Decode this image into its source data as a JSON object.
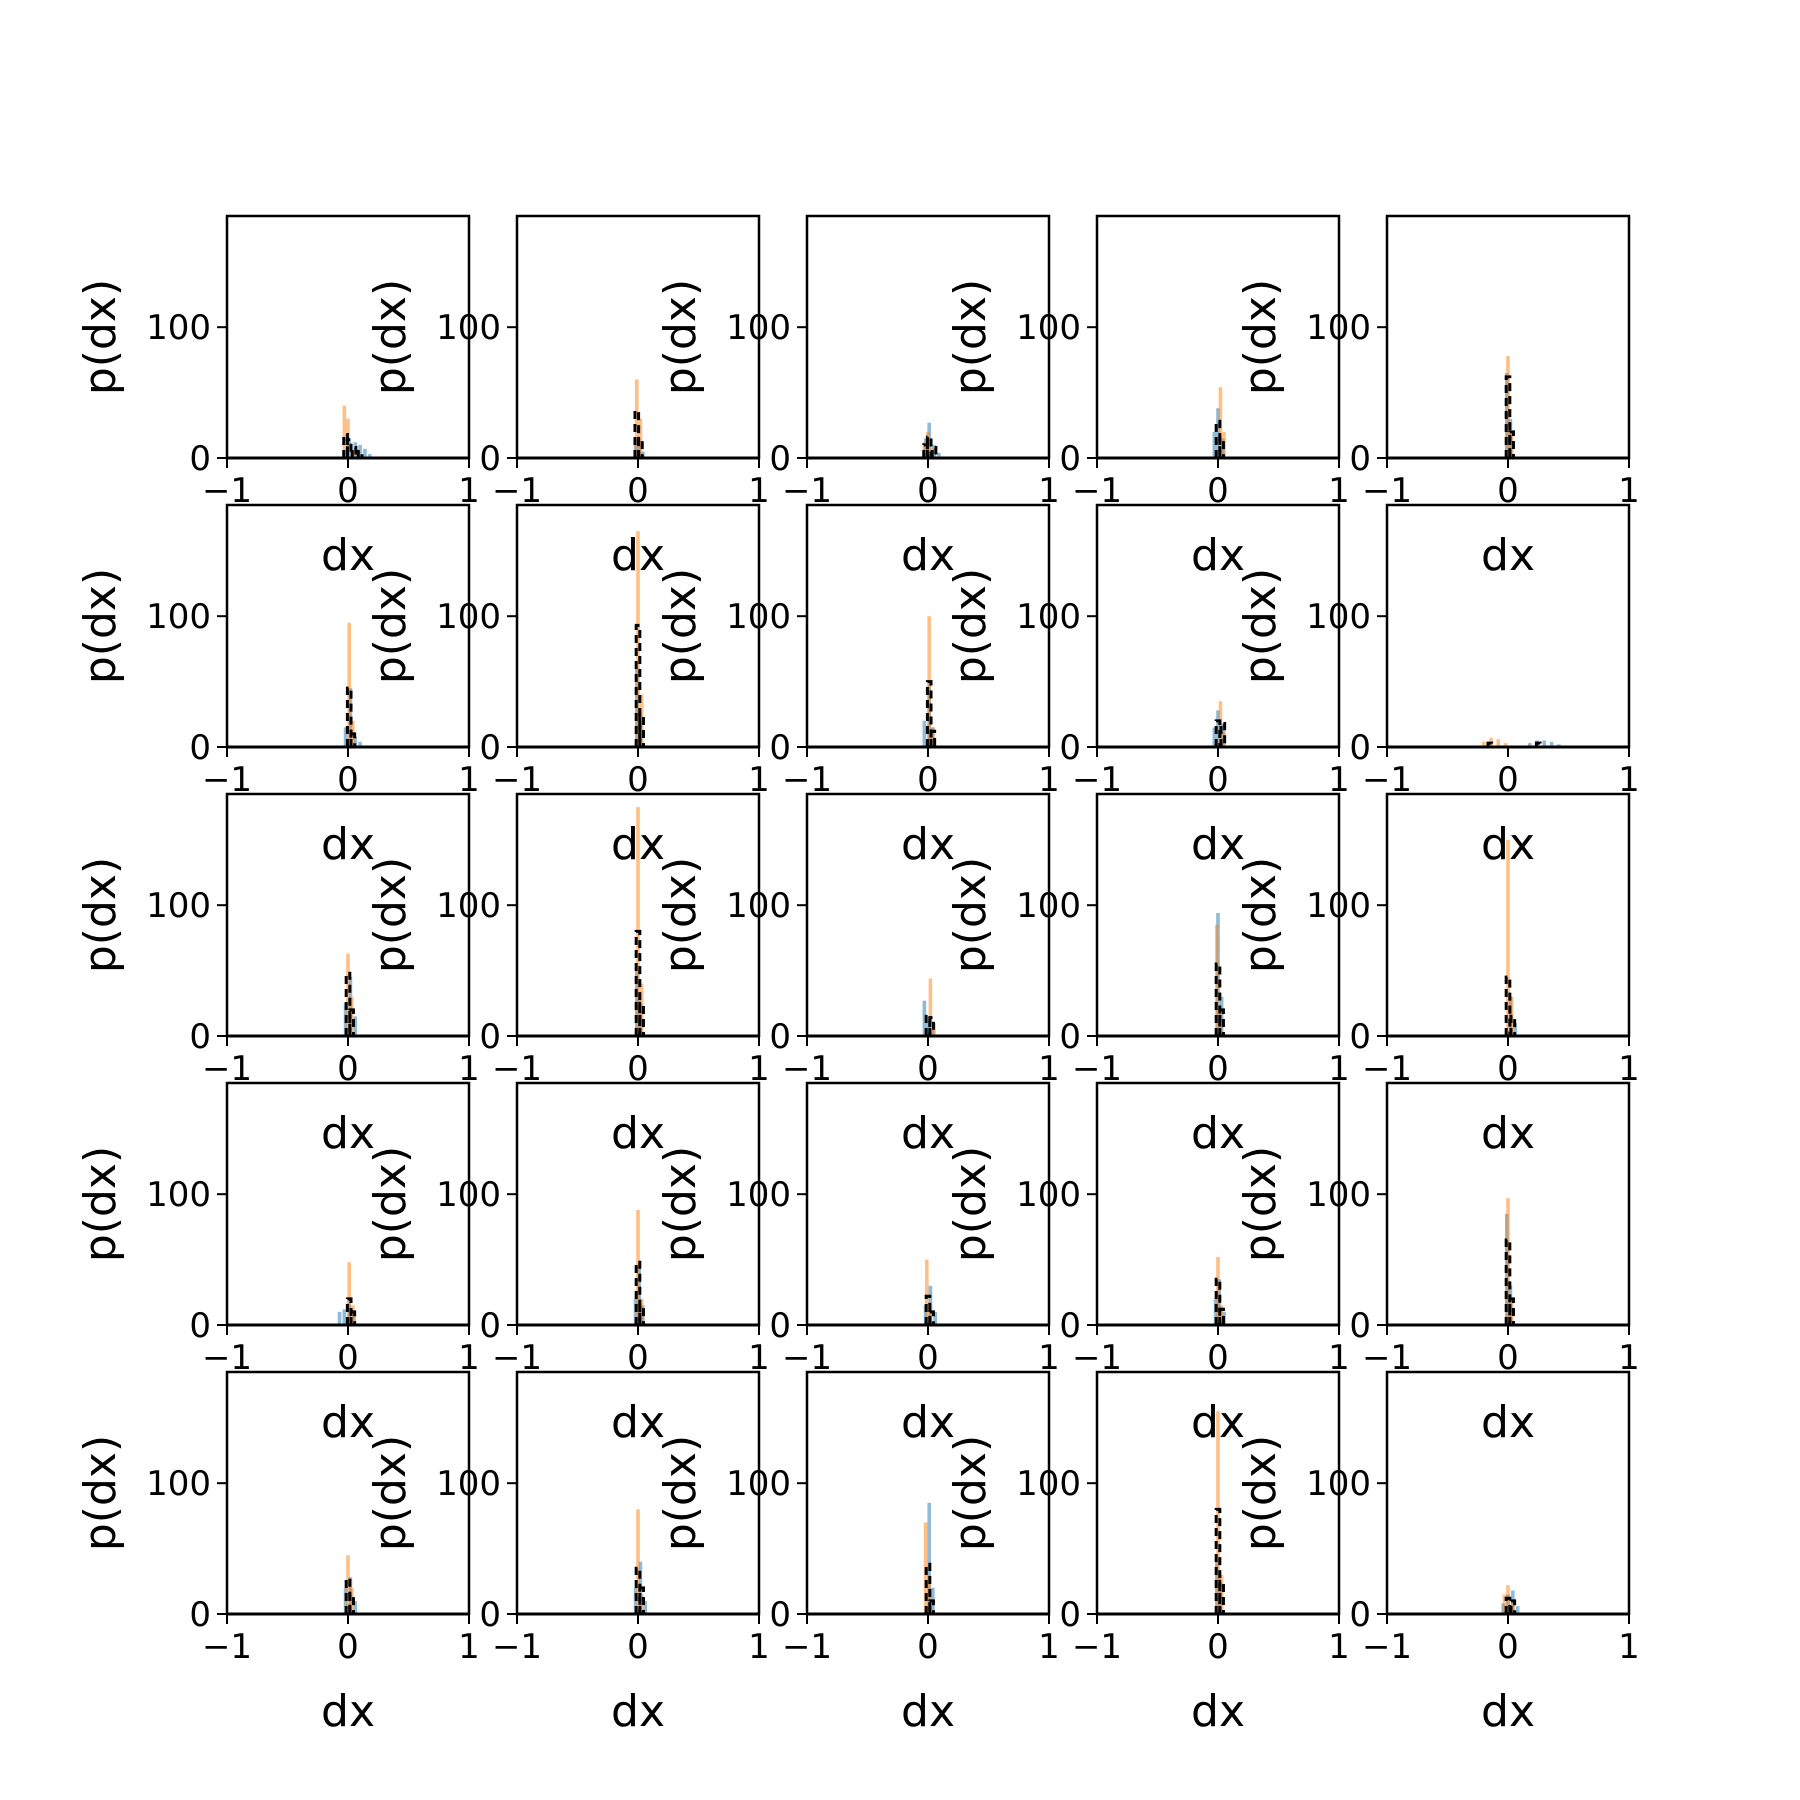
{
  "figure": {
    "colors": {
      "blue": "#1f77b4",
      "orange": "#ff7f0e",
      "black": "#000000",
      "frame": "#000000"
    }
  },
  "chart_data": {
    "type": "histogram-grid",
    "rows": 5,
    "cols": 5,
    "xlabel": "dx",
    "ylabel": "p(dx)",
    "xlim": [
      -1,
      1
    ],
    "ylim": [
      0,
      185
    ],
    "xticks": [
      -1,
      0,
      1
    ],
    "xtick_labels": [
      "−1",
      "0",
      "1"
    ],
    "yticks": [
      0,
      100
    ],
    "ytick_labels": [
      "0",
      "100"
    ],
    "grid": false,
    "legend": "none",
    "series_styles": [
      {
        "key": "blue",
        "render": "filled histogram",
        "alpha": 0.5
      },
      {
        "key": "orange",
        "render": "filled histogram",
        "alpha": 0.5
      },
      {
        "key": "black",
        "render": "dashed step outline"
      }
    ],
    "panels": [
      {
        "row": 0,
        "col": 0,
        "blue": [
          [
            0.01,
            15
          ],
          [
            0.06,
            12
          ],
          [
            0.1,
            10
          ],
          [
            0.14,
            7
          ],
          [
            0.18,
            3
          ]
        ],
        "orange": [
          [
            -0.03,
            40
          ],
          [
            0.0,
            30
          ],
          [
            0.04,
            5
          ]
        ],
        "black": [
          [
            -0.02,
            18
          ],
          [
            0.01,
            14
          ],
          [
            0.05,
            8
          ],
          [
            0.1,
            5
          ]
        ]
      },
      {
        "row": 0,
        "col": 1,
        "blue": [
          [
            -0.02,
            15
          ],
          [
            0.01,
            10
          ],
          [
            0.04,
            5
          ]
        ],
        "orange": [
          [
            -0.01,
            60
          ],
          [
            0.02,
            30
          ]
        ],
        "black": [
          [
            -0.01,
            36
          ],
          [
            0.02,
            15
          ]
        ]
      },
      {
        "row": 0,
        "col": 2,
        "blue": [
          [
            -0.02,
            15
          ],
          [
            0.01,
            27
          ],
          [
            0.05,
            10
          ],
          [
            0.09,
            4
          ]
        ],
        "orange": [
          [
            -0.03,
            12
          ],
          [
            0.0,
            20
          ],
          [
            0.03,
            8
          ]
        ],
        "black": [
          [
            -0.02,
            10
          ],
          [
            0.01,
            16
          ],
          [
            0.05,
            8
          ]
        ]
      },
      {
        "row": 0,
        "col": 3,
        "blue": [
          [
            -0.03,
            20
          ],
          [
            0.0,
            38
          ],
          [
            0.04,
            15
          ]
        ],
        "orange": [
          [
            0.02,
            54
          ],
          [
            0.05,
            20
          ]
        ],
        "black": [
          [
            0.0,
            28
          ],
          [
            0.03,
            15
          ]
        ]
      },
      {
        "row": 0,
        "col": 4,
        "blue": [
          [
            -0.01,
            65
          ],
          [
            0.02,
            30
          ]
        ],
        "orange": [
          [
            0.0,
            78
          ],
          [
            0.03,
            20
          ]
        ],
        "black": [
          [
            0.0,
            62
          ],
          [
            0.03,
            20
          ]
        ]
      },
      {
        "row": 1,
        "col": 0,
        "blue": [
          [
            -0.02,
            15
          ],
          [
            0.02,
            45
          ],
          [
            0.06,
            8
          ],
          [
            0.1,
            4
          ]
        ],
        "orange": [
          [
            0.01,
            95
          ],
          [
            0.04,
            20
          ]
        ],
        "black": [
          [
            0.01,
            45
          ],
          [
            0.04,
            10
          ]
        ]
      },
      {
        "row": 1,
        "col": 1,
        "blue": [
          [
            -0.01,
            60
          ],
          [
            0.02,
            20
          ]
        ],
        "orange": [
          [
            0.0,
            165
          ],
          [
            0.03,
            40
          ]
        ],
        "black": [
          [
            0.0,
            93
          ],
          [
            0.03,
            25
          ]
        ]
      },
      {
        "row": 1,
        "col": 2,
        "blue": [
          [
            -0.03,
            20
          ],
          [
            0.01,
            48
          ],
          [
            0.04,
            15
          ]
        ],
        "orange": [
          [
            0.01,
            100
          ],
          [
            0.04,
            15
          ]
        ],
        "black": [
          [
            0.01,
            50
          ],
          [
            0.04,
            12
          ]
        ]
      },
      {
        "row": 1,
        "col": 3,
        "blue": [
          [
            -0.03,
            15
          ],
          [
            0.0,
            28
          ],
          [
            0.04,
            18
          ]
        ],
        "orange": [
          [
            0.02,
            35
          ],
          [
            0.05,
            12
          ]
        ],
        "black": [
          [
            0.0,
            20
          ],
          [
            0.04,
            18
          ]
        ]
      },
      {
        "row": 1,
        "col": 4,
        "blue": [
          [
            0.18,
            3
          ],
          [
            0.24,
            5
          ],
          [
            0.3,
            5
          ],
          [
            0.36,
            4
          ],
          [
            0.42,
            2
          ]
        ],
        "orange": [
          [
            -0.2,
            4
          ],
          [
            -0.14,
            7
          ],
          [
            -0.08,
            6
          ],
          [
            -0.02,
            3
          ]
        ],
        "black": [
          [
            -0.15,
            3
          ],
          [
            0.25,
            3
          ]
        ]
      },
      {
        "row": 2,
        "col": 0,
        "blue": [
          [
            -0.02,
            25
          ],
          [
            0.02,
            45
          ],
          [
            0.06,
            15
          ]
        ],
        "orange": [
          [
            0.0,
            63
          ],
          [
            0.03,
            30
          ]
        ],
        "black": [
          [
            0.0,
            48
          ],
          [
            0.03,
            20
          ]
        ]
      },
      {
        "row": 2,
        "col": 1,
        "blue": [
          [
            -0.01,
            50
          ],
          [
            0.02,
            20
          ]
        ],
        "orange": [
          [
            0.0,
            175
          ],
          [
            0.03,
            40
          ]
        ],
        "black": [
          [
            0.0,
            80
          ],
          [
            0.03,
            25
          ]
        ]
      },
      {
        "row": 2,
        "col": 2,
        "blue": [
          [
            -0.03,
            27
          ],
          [
            0.0,
            10
          ],
          [
            0.04,
            5
          ]
        ],
        "orange": [
          [
            0.02,
            44
          ],
          [
            0.05,
            10
          ]
        ],
        "black": [
          [
            0.0,
            15
          ],
          [
            0.03,
            14
          ]
        ]
      },
      {
        "row": 2,
        "col": 3,
        "blue": [
          [
            0.0,
            94
          ],
          [
            0.03,
            30
          ]
        ],
        "orange": [
          [
            -0.01,
            85
          ],
          [
            0.02,
            20
          ]
        ],
        "black": [
          [
            0.0,
            55
          ],
          [
            0.03,
            20
          ]
        ]
      },
      {
        "row": 2,
        "col": 4,
        "blue": [
          [
            0.02,
            30
          ],
          [
            0.06,
            10
          ]
        ],
        "orange": [
          [
            0.0,
            150
          ],
          [
            0.03,
            30
          ]
        ],
        "black": [
          [
            0.0,
            45
          ],
          [
            0.04,
            15
          ]
        ]
      },
      {
        "row": 3,
        "col": 0,
        "blue": [
          [
            -0.07,
            10
          ],
          [
            -0.03,
            12
          ],
          [
            0.01,
            18
          ],
          [
            0.05,
            8
          ]
        ],
        "orange": [
          [
            0.01,
            48
          ],
          [
            0.04,
            15
          ]
        ],
        "black": [
          [
            0.01,
            20
          ],
          [
            0.04,
            10
          ]
        ]
      },
      {
        "row": 3,
        "col": 1,
        "blue": [
          [
            -0.02,
            20
          ],
          [
            0.01,
            45
          ],
          [
            0.04,
            15
          ]
        ],
        "orange": [
          [
            0.0,
            88
          ],
          [
            0.03,
            20
          ]
        ],
        "black": [
          [
            0.0,
            48
          ],
          [
            0.03,
            15
          ]
        ]
      },
      {
        "row": 3,
        "col": 2,
        "blue": [
          [
            -0.02,
            15
          ],
          [
            0.02,
            30
          ],
          [
            0.06,
            10
          ]
        ],
        "orange": [
          [
            -0.01,
            50
          ],
          [
            0.02,
            15
          ]
        ],
        "black": [
          [
            0.0,
            22
          ],
          [
            0.03,
            10
          ]
        ]
      },
      {
        "row": 3,
        "col": 3,
        "blue": [
          [
            -0.02,
            20
          ],
          [
            0.01,
            35
          ],
          [
            0.05,
            10
          ]
        ],
        "orange": [
          [
            0.0,
            52
          ],
          [
            0.03,
            15
          ]
        ],
        "black": [
          [
            0.0,
            35
          ],
          [
            0.03,
            12
          ]
        ]
      },
      {
        "row": 3,
        "col": 4,
        "blue": [
          [
            -0.01,
            85
          ],
          [
            0.02,
            30
          ]
        ],
        "orange": [
          [
            0.0,
            97
          ],
          [
            0.03,
            20
          ]
        ],
        "black": [
          [
            0.0,
            65
          ],
          [
            0.03,
            20
          ]
        ]
      },
      {
        "row": 4,
        "col": 0,
        "blue": [
          [
            -0.02,
            20
          ],
          [
            0.02,
            28
          ],
          [
            0.06,
            10
          ]
        ],
        "orange": [
          [
            0.0,
            45
          ],
          [
            0.03,
            20
          ]
        ],
        "black": [
          [
            0.0,
            27
          ],
          [
            0.03,
            15
          ]
        ]
      },
      {
        "row": 4,
        "col": 1,
        "blue": [
          [
            -0.02,
            20
          ],
          [
            0.02,
            40
          ],
          [
            0.06,
            10
          ]
        ],
        "orange": [
          [
            0.0,
            80
          ],
          [
            0.03,
            15
          ]
        ],
        "black": [
          [
            0.0,
            35
          ],
          [
            0.03,
            20
          ]
        ]
      },
      {
        "row": 4,
        "col": 2,
        "blue": [
          [
            0.01,
            85
          ],
          [
            0.04,
            20
          ]
        ],
        "orange": [
          [
            -0.02,
            70
          ],
          [
            0.01,
            30
          ]
        ],
        "black": [
          [
            0.0,
            38
          ],
          [
            0.03,
            10
          ]
        ]
      },
      {
        "row": 4,
        "col": 3,
        "blue": [
          [
            -0.01,
            40
          ],
          [
            0.02,
            20
          ]
        ],
        "orange": [
          [
            0.0,
            155
          ],
          [
            0.03,
            30
          ]
        ],
        "black": [
          [
            0.0,
            80
          ],
          [
            0.03,
            25
          ]
        ]
      },
      {
        "row": 4,
        "col": 4,
        "blue": [
          [
            -0.04,
            8
          ],
          [
            0.0,
            15
          ],
          [
            0.04,
            18
          ],
          [
            0.08,
            6
          ]
        ],
        "orange": [
          [
            -0.03,
            15
          ],
          [
            0.0,
            22
          ],
          [
            0.04,
            10
          ]
        ],
        "black": [
          [
            0.0,
            12
          ],
          [
            0.04,
            10
          ]
        ]
      }
    ]
  }
}
